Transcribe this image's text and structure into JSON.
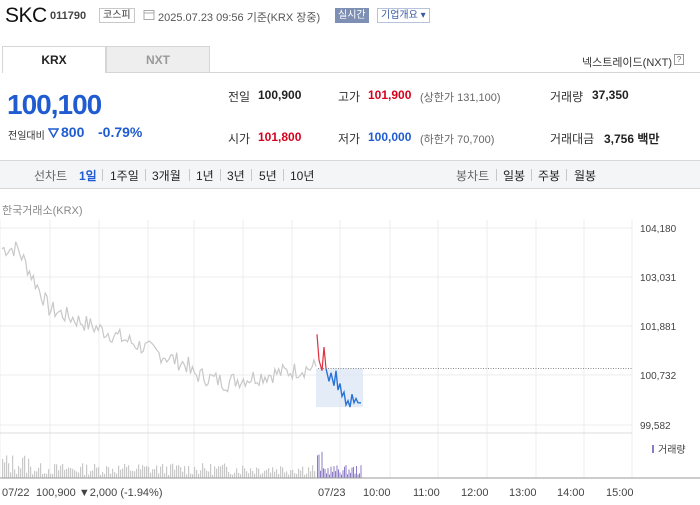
{
  "header": {
    "stock_name": "SKC",
    "stock_code": "011790",
    "market": "코스피",
    "datetime": "2025.07.23 09:56 기준(KRX 장중)",
    "realtime": "실시간",
    "company_info": "기업개요 ▾"
  },
  "tabs": [
    {
      "label": "KRX"
    },
    {
      "label": "NXT"
    }
  ],
  "nxt_link": "넥스트레이드(NXT)",
  "price": {
    "current": "100,100",
    "change_label": "전일대비",
    "change_value": "800",
    "change_rate": "-0.79%"
  },
  "stats": {
    "prev_label": "전일",
    "prev_value": "100,900",
    "high_label": "고가",
    "high_value": "101,900",
    "upper_limit": "(상한가 131,100)",
    "volume_label": "거래량",
    "volume_value": "37,350",
    "open_label": "시가",
    "open_value": "101,800",
    "low_label": "저가",
    "low_value": "100,000",
    "lower_limit": "(하한가 70,700)",
    "amount_label": "거래대금",
    "amount_value": "3,756 백만"
  },
  "period_bar": {
    "line_label": "선차트",
    "periods": [
      "1일",
      "1주일",
      "3개월",
      "1년",
      "3년",
      "5년",
      "10년"
    ],
    "active": "1일",
    "candle_label": "봉차트",
    "candle_periods": [
      "일봉",
      "주봉",
      "월봉"
    ]
  },
  "chart_data": {
    "type": "line",
    "title": "한국거래소(KRX)",
    "y_ticks": [
      "104,180",
      "103,031",
      "101,881",
      "100,732",
      "99,582"
    ],
    "ylim": [
      99582,
      104180
    ],
    "prev_close": 100900,
    "prev_day": {
      "date": "07/22",
      "close": "100,900",
      "change": "▼2,000",
      "rate": "(-1.94%)"
    },
    "today_date": "07/23",
    "time_ticks": [
      "10:00",
      "11:00",
      "12:00",
      "13:00",
      "14:00",
      "15:00"
    ],
    "volume_legend": "거래량",
    "colors": {
      "prev_line": "#c8c8c8",
      "today_line": "#2a73d6",
      "up_tick": "#e0303f",
      "volume_prev": "#c8c8c8",
      "volume_today": "#8b7bc4"
    }
  }
}
